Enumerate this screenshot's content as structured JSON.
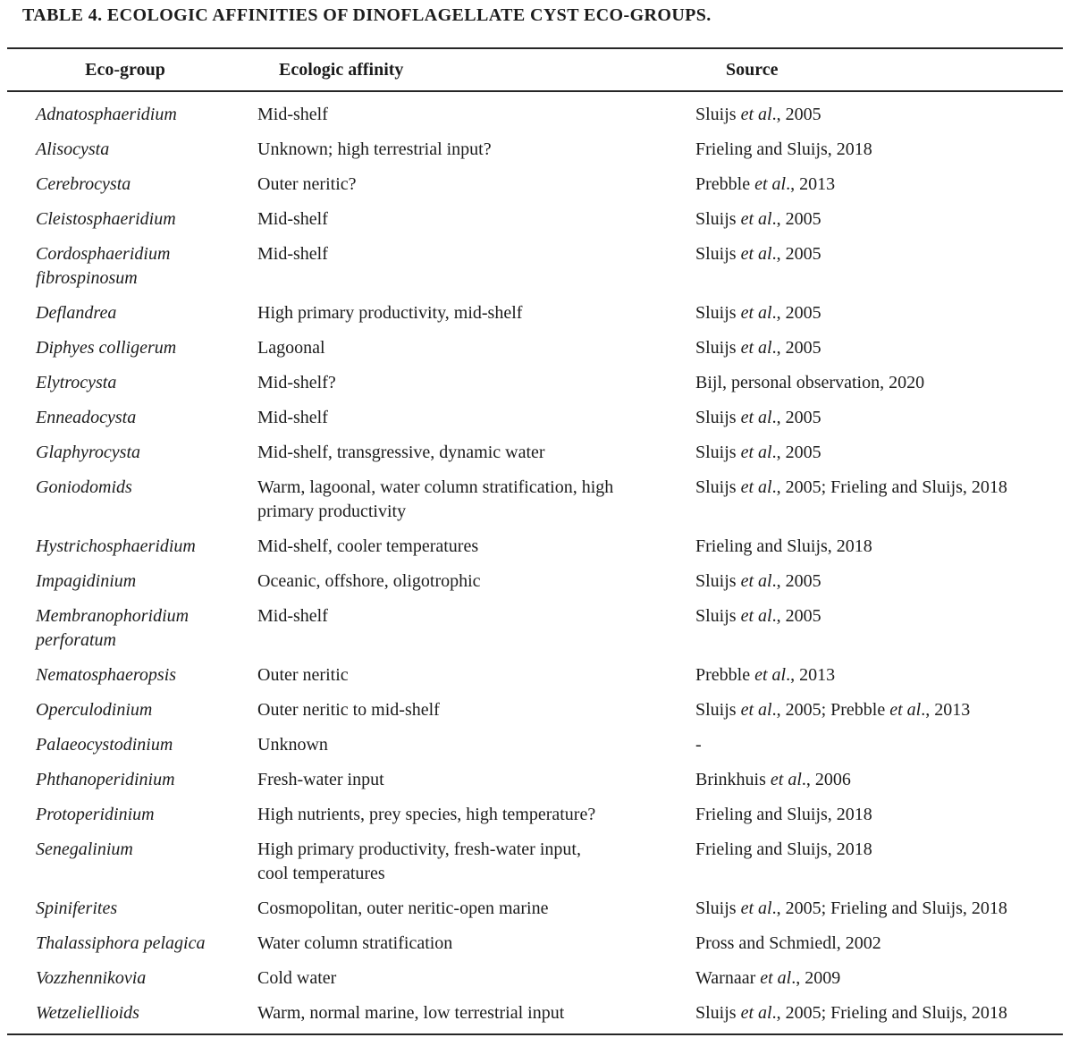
{
  "caption": "TABLE 4. ECOLOGIC AFFINITIES OF DINOFLAGELLATE CYST ECO-GROUPS.",
  "table": {
    "columns": [
      "Eco-group",
      "Ecologic affinity",
      "Source"
    ],
    "rows": [
      {
        "eco_group": "Adnatosphaeridium",
        "affinity": "Mid-shelf",
        "source": [
          {
            "t": "Sluijs "
          },
          {
            "t": "et al",
            "i": true
          },
          {
            "t": "., 2005"
          }
        ]
      },
      {
        "eco_group": "Alisocysta",
        "affinity": "Unknown; high terrestrial input?",
        "source": [
          {
            "t": "Frieling and Sluijs, 2018"
          }
        ]
      },
      {
        "eco_group": "Cerebrocysta",
        "affinity": "Outer neritic?",
        "source": [
          {
            "t": "Prebble "
          },
          {
            "t": "et al",
            "i": true
          },
          {
            "t": "., 2013"
          }
        ]
      },
      {
        "eco_group": "Cleistosphaeridium",
        "affinity": "Mid-shelf",
        "source": [
          {
            "t": "Sluijs "
          },
          {
            "t": "et al",
            "i": true
          },
          {
            "t": "., 2005"
          }
        ]
      },
      {
        "eco_group": "Cordosphaeridium\nfibrospinosum",
        "affinity": "Mid-shelf",
        "source": [
          {
            "t": "Sluijs "
          },
          {
            "t": "et al",
            "i": true
          },
          {
            "t": "., 2005"
          }
        ]
      },
      {
        "eco_group": "Deflandrea",
        "affinity": "High primary productivity, mid-shelf",
        "source": [
          {
            "t": "Sluijs "
          },
          {
            "t": "et al",
            "i": true
          },
          {
            "t": "., 2005"
          }
        ]
      },
      {
        "eco_group": "Diphyes colligerum",
        "affinity": "Lagoonal",
        "source": [
          {
            "t": "Sluijs "
          },
          {
            "t": "et al",
            "i": true
          },
          {
            "t": "., 2005"
          }
        ]
      },
      {
        "eco_group": "Elytrocysta",
        "affinity": "Mid-shelf?",
        "source": [
          {
            "t": "Bijl, personal observation, 2020"
          }
        ]
      },
      {
        "eco_group": "Enneadocysta",
        "affinity": "Mid-shelf",
        "source": [
          {
            "t": "Sluijs "
          },
          {
            "t": "et al",
            "i": true
          },
          {
            "t": "., 2005"
          }
        ]
      },
      {
        "eco_group": "Glaphyrocysta",
        "affinity": "Mid-shelf, transgressive, dynamic water",
        "source": [
          {
            "t": "Sluijs "
          },
          {
            "t": "et al",
            "i": true
          },
          {
            "t": "., 2005"
          }
        ]
      },
      {
        "eco_group": "Goniodomids",
        "affinity": "Warm, lagoonal, water column stratification, high\nprimary productivity",
        "source": [
          {
            "t": "Sluijs "
          },
          {
            "t": "et al",
            "i": true
          },
          {
            "t": "., 2005; Frieling and Sluijs, 2018"
          }
        ]
      },
      {
        "eco_group": "Hystrichosphaeridium",
        "affinity": "Mid-shelf, cooler temperatures",
        "source": [
          {
            "t": "Frieling and Sluijs, 2018"
          }
        ]
      },
      {
        "eco_group": "Impagidinium",
        "affinity": "Oceanic, offshore, oligotrophic",
        "source": [
          {
            "t": "Sluijs "
          },
          {
            "t": "et al",
            "i": true
          },
          {
            "t": "., 2005"
          }
        ]
      },
      {
        "eco_group": "Membranophoridium\nperforatum",
        "affinity": "Mid-shelf",
        "source": [
          {
            "t": "Sluijs "
          },
          {
            "t": "et al",
            "i": true
          },
          {
            "t": "., 2005"
          }
        ]
      },
      {
        "eco_group": "Nematosphaeropsis",
        "affinity": "Outer neritic",
        "source": [
          {
            "t": "Prebble "
          },
          {
            "t": "et al",
            "i": true
          },
          {
            "t": "., 2013"
          }
        ]
      },
      {
        "eco_group": "Operculodinium",
        "affinity": "Outer neritic to mid-shelf",
        "source": [
          {
            "t": "Sluijs "
          },
          {
            "t": "et al",
            "i": true
          },
          {
            "t": "., 2005; Prebble "
          },
          {
            "t": "et al",
            "i": true
          },
          {
            "t": "., 2013"
          }
        ]
      },
      {
        "eco_group": "Palaeocystodinium",
        "affinity": "Unknown",
        "source": [
          {
            "t": "-"
          }
        ]
      },
      {
        "eco_group": "Phthanoperidinium",
        "affinity": "Fresh-water input",
        "source": [
          {
            "t": "Brinkhuis "
          },
          {
            "t": "et al",
            "i": true
          },
          {
            "t": "., 2006"
          }
        ]
      },
      {
        "eco_group": "Protoperidinium",
        "affinity": "High nutrients, prey species, high temperature?",
        "source": [
          {
            "t": "Frieling and Sluijs, 2018"
          }
        ]
      },
      {
        "eco_group": "Senegalinium",
        "affinity": "High primary productivity, fresh-water input,\ncool temperatures",
        "source": [
          {
            "t": "Frieling and Sluijs, 2018"
          }
        ]
      },
      {
        "eco_group": "Spiniferites",
        "affinity": "Cosmopolitan, outer neritic-open marine",
        "source": [
          {
            "t": "Sluijs "
          },
          {
            "t": "et al",
            "i": true
          },
          {
            "t": "., 2005; Frieling and Sluijs, 2018"
          }
        ]
      },
      {
        "eco_group": "Thalassiphora pelagica",
        "affinity": "Water column stratification",
        "source": [
          {
            "t": "Pross and Schmiedl, 2002"
          }
        ]
      },
      {
        "eco_group": "Vozzhennikovia",
        "affinity": "Cold water",
        "source": [
          {
            "t": "Warnaar "
          },
          {
            "t": "et al",
            "i": true
          },
          {
            "t": "., 2009"
          }
        ]
      },
      {
        "eco_group": "Wetzeliellioids",
        "affinity": "Warm, normal marine, low terrestrial input",
        "source": [
          {
            "t": "Sluijs "
          },
          {
            "t": "et al",
            "i": true
          },
          {
            "t": "., 2005; Frieling and Sluijs, 2018"
          }
        ]
      }
    ]
  }
}
